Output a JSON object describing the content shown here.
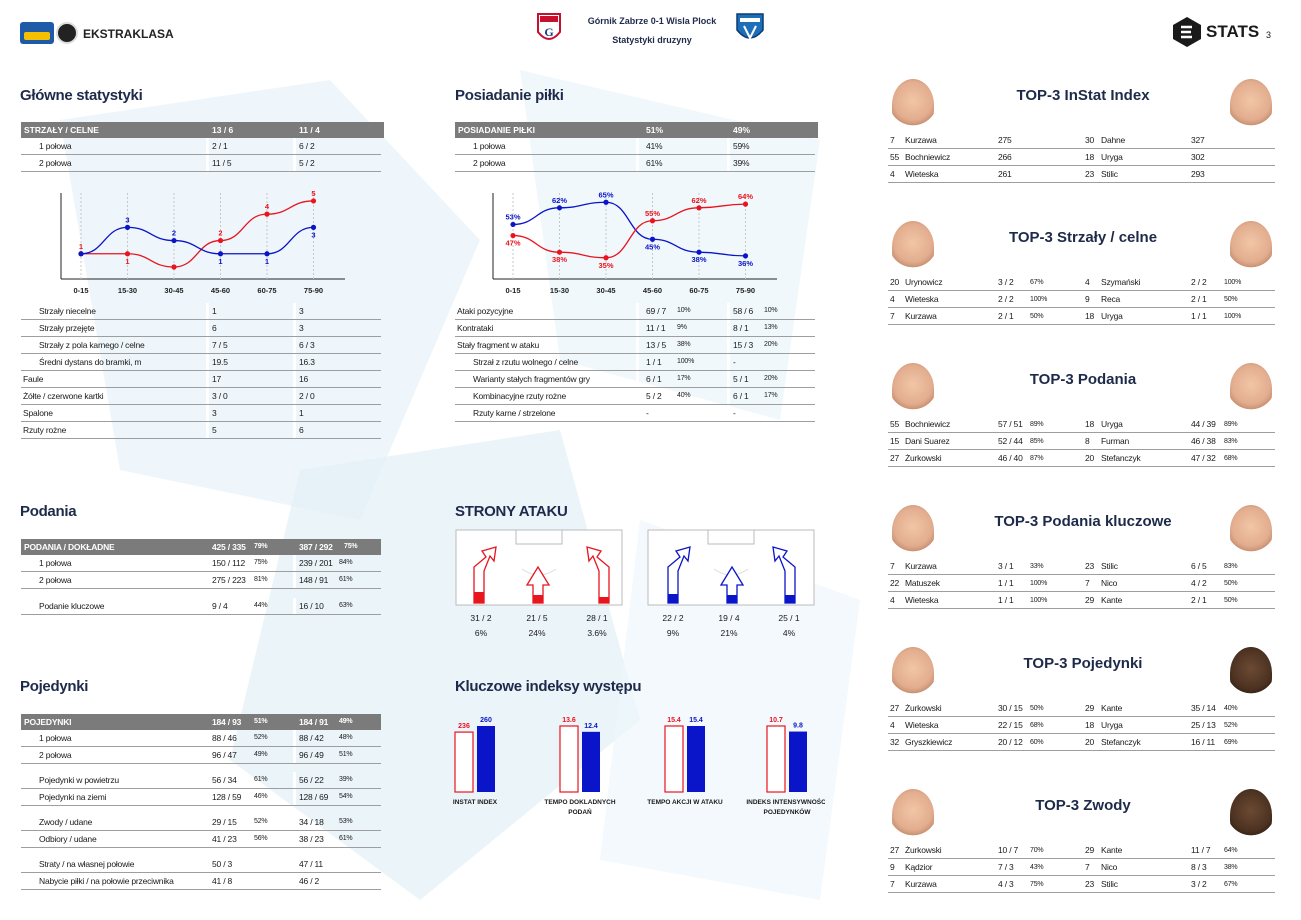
{
  "header": {
    "league_logo_text": "EKSTRAKLASA",
    "match_title": "Górnik Zabrze 0-1 Wisla Plock",
    "subtitle": "Statystyki druzyny",
    "stats_logo": "STATS",
    "page_number": "3"
  },
  "colors": {
    "home": "#e8141e",
    "away": "#0a14c8",
    "header_gray": "#7b7b7b",
    "title_navy": "#1e2a4a"
  },
  "main_stats": {
    "title": "Główne statystyki",
    "header": [
      "STRZAŁY / CELNE",
      "13 / 6",
      "11 / 4"
    ],
    "rows": [
      [
        "1 połowa",
        "2 / 1",
        "6 / 2"
      ],
      [
        "2 połowa",
        "11 / 5",
        "5 / 2"
      ]
    ],
    "rows2": [
      [
        "Strzały niecelne",
        "1",
        "3",
        "1"
      ],
      [
        "Strzały przejęte",
        "6",
        "3",
        "1"
      ],
      [
        "Strzały z pola karnego / celne",
        "7 / 5",
        "6 / 3",
        "1"
      ],
      [
        "Średni dystans do bramki, m",
        "19.5",
        "16.3",
        "1"
      ],
      [
        "Faule",
        "17",
        "16",
        "0"
      ],
      [
        "Żółte / czerwone kartki",
        "3 / 0",
        "2 / 0",
        "0"
      ],
      [
        "Spalone",
        "3",
        "1",
        "0"
      ],
      [
        "Rzuty rożne",
        "5",
        "6",
        "0"
      ]
    ]
  },
  "chart_data": [
    {
      "type": "line",
      "categories": [
        "0-15",
        "15-30",
        "30-45",
        "45-60",
        "60-75",
        "75-90"
      ],
      "series": [
        {
          "color": "#e8141e",
          "values": [
            1,
            1,
            0,
            2,
            4,
            5
          ],
          "labels": [
            "1",
            "1",
            "",
            "2",
            "4",
            "5"
          ]
        },
        {
          "color": "#0a14c8",
          "values": [
            1,
            3,
            2,
            1,
            1,
            3
          ],
          "labels": [
            "",
            "3",
            "2",
            "1",
            "1",
            "3"
          ]
        }
      ],
      "ylim": [
        0,
        5.6
      ]
    },
    {
      "type": "line",
      "categories": [
        "0-15",
        "15-30",
        "30-45",
        "45-60",
        "60-75",
        "75-90"
      ],
      "series": [
        {
          "color": "#0a14c8",
          "values": [
            53,
            62,
            65,
            45,
            38,
            36
          ],
          "labels": [
            "53%",
            "62%",
            "65%",
            "45%",
            "38%",
            "36%"
          ]
        },
        {
          "color": "#e8141e",
          "values": [
            47,
            38,
            35,
            55,
            62,
            64
          ],
          "labels": [
            "47%",
            "38%",
            "35%",
            "55%",
            "62%",
            "64%"
          ]
        }
      ],
      "ylim": [
        30,
        70
      ]
    },
    {
      "type": "bar",
      "categories": [
        "INSTAT INDEX",
        "TEMPO DOKLADNYCH PODAŃ",
        "TEMPO AKCJI W ATAKU",
        "INDEKS INTENSYWNOŚCI POJEDYNKÓW"
      ],
      "series": [
        {
          "color": "#e8141e",
          "values": [
            236,
            13.6,
            15.4,
            10.7
          ],
          "labels": [
            "236",
            "13.6",
            "15.4",
            "10.7"
          ]
        },
        {
          "color": "#0a14c8",
          "values": [
            260,
            12.4,
            15.4,
            9.8
          ],
          "labels": [
            "260",
            "12.4",
            "15.4",
            "9.8"
          ]
        }
      ]
    }
  ],
  "possession": {
    "title": "Posiadanie piłki",
    "header": [
      "POSIADANIE PIŁKI",
      "51%",
      "49%"
    ],
    "rows": [
      [
        "1 połowa",
        "41%",
        "59%"
      ],
      [
        "2 połowa",
        "61%",
        "39%"
      ]
    ],
    "rows2": [
      [
        "Ataki pozycyjne",
        "69 / 7",
        "10%",
        "58 / 6",
        "10%",
        "0"
      ],
      [
        "Kontrataki",
        "11 / 1",
        "9%",
        "8 / 1",
        "13%",
        "0"
      ],
      [
        "Stały fragment w ataku",
        "13 / 5",
        "38%",
        "15 / 3",
        "20%",
        "0"
      ],
      [
        "Strzał z rzutu wolnego / celne",
        "1 / 1",
        "100%",
        "-",
        "",
        "1"
      ],
      [
        "Warianty stałych fragmentów gry",
        "6 / 1",
        "17%",
        "5 / 1",
        "20%",
        "1"
      ],
      [
        "Kombinacyjne rzuty rożne",
        "5 / 2",
        "40%",
        "6 / 1",
        "17%",
        "1"
      ],
      [
        "Rzuty karne / strzelone",
        "-",
        "",
        "-",
        "",
        "1"
      ]
    ]
  },
  "passes": {
    "title": "Podania",
    "header": [
      "PODANIA / DOKŁADNE",
      "425 / 335",
      "79%",
      "387 / 292",
      "75%"
    ],
    "rows": [
      [
        "1 połowa",
        "150 / 112",
        "75%",
        "239 / 201",
        "84%"
      ],
      [
        "2 połowa",
        "275 / 223",
        "81%",
        "148 / 91",
        "61%"
      ]
    ],
    "key": [
      "Podanie kluczowe",
      "9 / 4",
      "44%",
      "16 / 10",
      "63%"
    ]
  },
  "duels": {
    "title": "Pojedynki",
    "header": [
      "POJEDYNKI",
      "184 / 93",
      "51%",
      "184 / 91",
      "49%"
    ],
    "groups": [
      [
        [
          "1 połowa",
          "88 / 46",
          "52%",
          "88 / 42",
          "48%"
        ],
        [
          "2 połowa",
          "96 / 47",
          "49%",
          "96 / 49",
          "51%"
        ]
      ],
      [
        [
          "Pojedynki w powietrzu",
          "56 / 34",
          "61%",
          "56 / 22",
          "39%"
        ],
        [
          "Pojedynki na ziemi",
          "128 / 59",
          "46%",
          "128 / 69",
          "54%"
        ]
      ],
      [
        [
          "Zwody / udane",
          "29 / 15",
          "52%",
          "34 / 18",
          "53%"
        ],
        [
          "Odbiory / udane",
          "41 / 23",
          "56%",
          "38 / 23",
          "61%"
        ]
      ],
      [
        [
          "Straty / na własnej połowie",
          "50 / 3",
          "",
          "47 / 11",
          ""
        ],
        [
          "Nabycie piłki / na połowie przeciwnika",
          "41 / 8",
          "",
          "46 / 2",
          ""
        ]
      ]
    ]
  },
  "attack_sides": {
    "title": "STRONY ATAKU",
    "home": [
      [
        "31 / 2",
        "6%"
      ],
      [
        "21 / 5",
        "24%"
      ],
      [
        "28 / 1",
        "3.6%"
      ]
    ],
    "away": [
      [
        "22 / 2",
        "9%"
      ],
      [
        "19 / 4",
        "21%"
      ],
      [
        "25 / 1",
        "4%"
      ]
    ]
  },
  "key_indexes": {
    "title": "Kluczowe indeksy występu",
    "labels": [
      [
        "INSTAT INDEX",
        ""
      ],
      [
        "TEMPO DOKLADNYCH",
        "PODAŃ"
      ],
      [
        "TEMPO AKCJI W ATAKU",
        ""
      ],
      [
        "INDEKS INTENSYWNOŚCI",
        "POJEDYNKÓW"
      ]
    ]
  },
  "top3": [
    {
      "title": "TOP-3 InStat Index",
      "dark_right": false,
      "rows": [
        [
          "7",
          "Kurzawa",
          "275",
          "",
          "30",
          "Dahne",
          "327",
          ""
        ],
        [
          "55",
          "Bochniewicz",
          "266",
          "",
          "18",
          "Uryga",
          "302",
          ""
        ],
        [
          "4",
          "Wieteska",
          "261",
          "",
          "23",
          "Stilic",
          "293",
          ""
        ]
      ]
    },
    {
      "title": "TOP-3 Strzały / celne",
      "dark_right": false,
      "rows": [
        [
          "20",
          "Urynowicz",
          "3 / 2",
          "67%",
          "4",
          "Szymański",
          "2 / 2",
          "100%"
        ],
        [
          "4",
          "Wieteska",
          "2 / 2",
          "100%",
          "9",
          "Reca",
          "2 / 1",
          "50%"
        ],
        [
          "7",
          "Kurzawa",
          "2 / 1",
          "50%",
          "18",
          "Uryga",
          "1 / 1",
          "100%"
        ]
      ]
    },
    {
      "title": "TOP-3 Podania",
      "dark_right": false,
      "rows": [
        [
          "55",
          "Bochniewicz",
          "57 / 51",
          "89%",
          "18",
          "Uryga",
          "44 / 39",
          "89%"
        ],
        [
          "15",
          "Dani Suarez",
          "52 / 44",
          "85%",
          "8",
          "Furman",
          "46 / 38",
          "83%"
        ],
        [
          "27",
          "Żurkowski",
          "46 / 40",
          "87%",
          "20",
          "Stefanczyk",
          "47 / 32",
          "68%"
        ]
      ]
    },
    {
      "title": "TOP-3 Podania kluczowe",
      "dark_right": false,
      "rows": [
        [
          "7",
          "Kurzawa",
          "3 / 1",
          "33%",
          "23",
          "Stilic",
          "6 / 5",
          "83%"
        ],
        [
          "22",
          "Matuszek",
          "1 / 1",
          "100%",
          "7",
          "Nico",
          "4 / 2",
          "50%"
        ],
        [
          "4",
          "Wieteska",
          "1 / 1",
          "100%",
          "29",
          "Kante",
          "2 / 1",
          "50%"
        ]
      ]
    },
    {
      "title": "TOP-3 Pojedynki",
      "dark_right": true,
      "rows": [
        [
          "27",
          "Żurkowski",
          "30 / 15",
          "50%",
          "29",
          "Kante",
          "35 / 14",
          "40%"
        ],
        [
          "4",
          "Wieteska",
          "22 / 15",
          "68%",
          "18",
          "Uryga",
          "25 / 13",
          "52%"
        ],
        [
          "32",
          "Gryszkiewicz",
          "20 / 12",
          "60%",
          "20",
          "Stefanczyk",
          "16 / 11",
          "69%"
        ]
      ]
    },
    {
      "title": "TOP-3 Zwody",
      "dark_right": true,
      "rows": [
        [
          "27",
          "Żurkowski",
          "10 / 7",
          "70%",
          "29",
          "Kante",
          "11 / 7",
          "64%"
        ],
        [
          "9",
          "Kądzior",
          "7 / 3",
          "43%",
          "7",
          "Nico",
          "8 / 3",
          "38%"
        ],
        [
          "7",
          "Kurzawa",
          "4 / 3",
          "75%",
          "23",
          "Stilic",
          "3 / 2",
          "67%"
        ]
      ]
    }
  ]
}
